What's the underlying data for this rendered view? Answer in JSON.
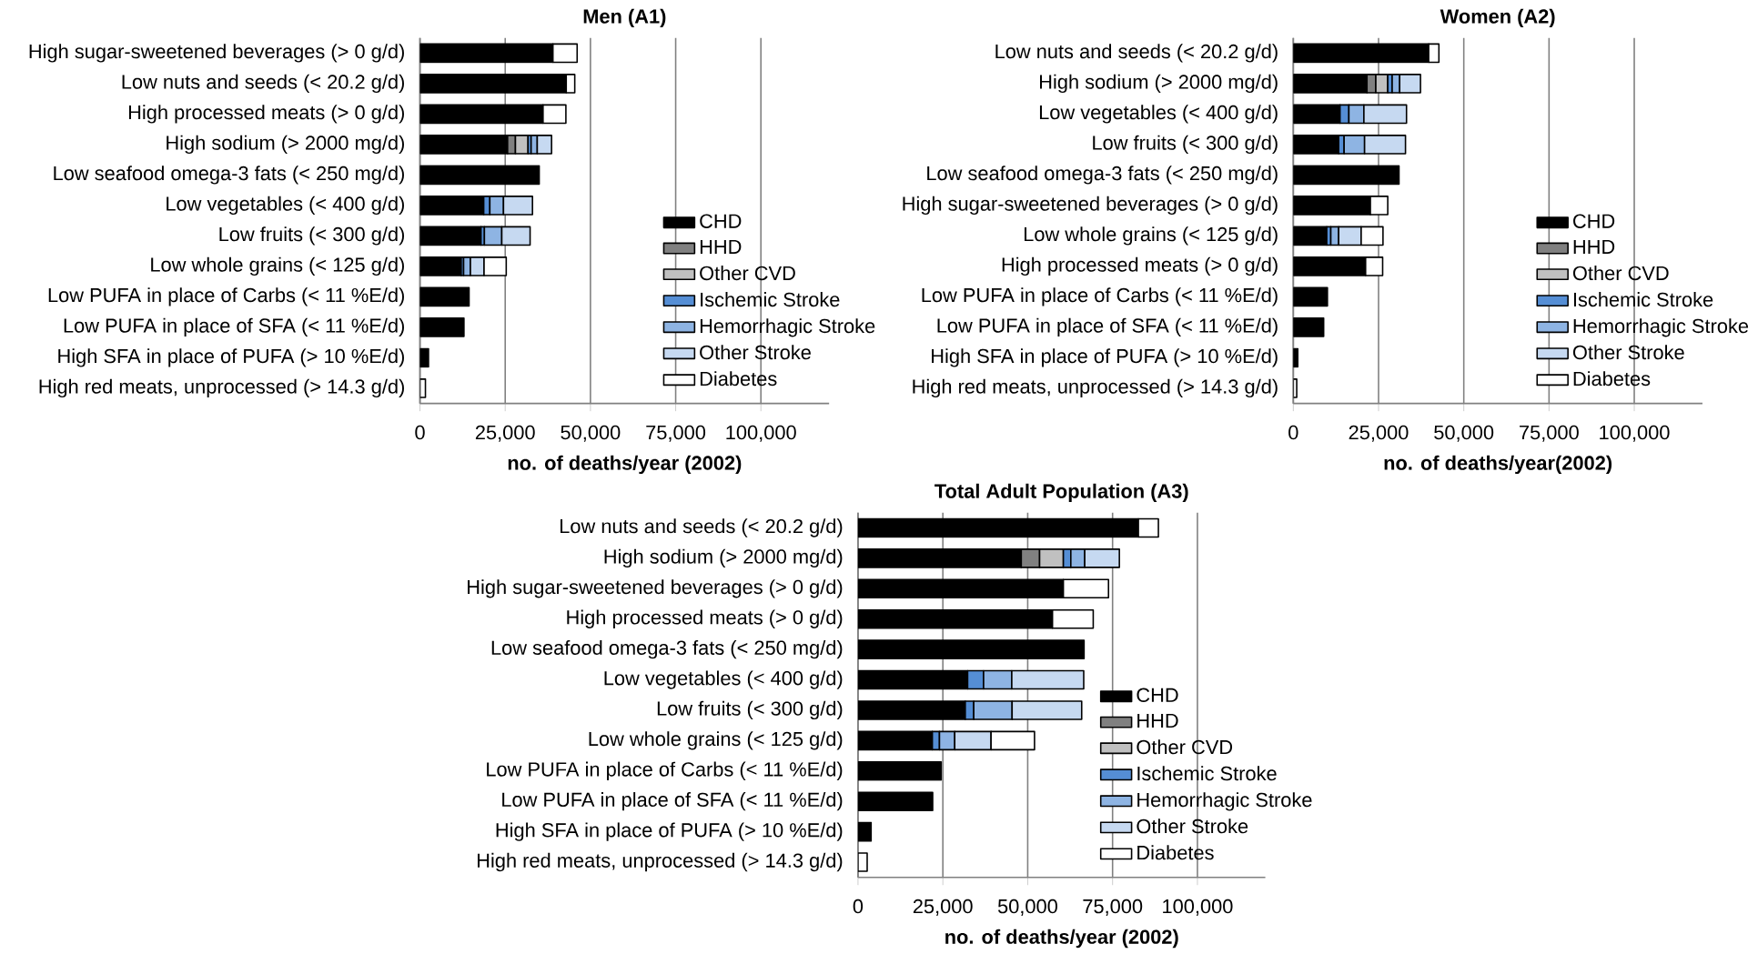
{
  "chart_data": [
    {
      "type": "bar",
      "orientation": "horizontal",
      "stacked": true,
      "title": "Men (A1)",
      "xlabel": "no. of deaths/year (2002)",
      "categories": [
        "High sugar-sweetened beverages (> 0 g/d)",
        "Low nuts and seeds (< 20.2 g/d)",
        "High processed meats (> 0 g/d)",
        "High sodium (> 2000 mg/d)",
        "Low seafood omega-3 fats (< 250 mg/d)",
        "Low vegetables (< 400 g/d)",
        "Low fruits (< 300 g/d)",
        "Low whole grains (< 125 g/d)",
        "Low PUFA in place of Carbs (< 11 %E/d)",
        "Low PUFA in place of SFA (< 11 %E/d)",
        "High SFA in place of PUFA (> 10 %E/d)",
        "High red meats, unprocessed (> 14.3 g/d)"
      ],
      "series": [
        {
          "name": "CHD",
          "color": "#000000",
          "values": [
            39000,
            42900,
            36100,
            25700,
            35000,
            18700,
            17900,
            12100,
            14400,
            12900,
            2500,
            0
          ]
        },
        {
          "name": "HHD",
          "color": "#808080",
          "values": [
            0,
            0,
            0,
            2300,
            0,
            0,
            0,
            0,
            0,
            0,
            0,
            0
          ]
        },
        {
          "name": "Other CVD",
          "color": "#c0c0c0",
          "values": [
            0,
            0,
            0,
            3700,
            0,
            0,
            0,
            0,
            0,
            0,
            0,
            0
          ]
        },
        {
          "name": "Ischemic Stroke",
          "color": "#558ed5",
          "values": [
            0,
            0,
            0,
            900,
            0,
            1800,
            1000,
            700,
            0,
            0,
            0,
            0
          ]
        },
        {
          "name": "Hemorrhagic Stroke",
          "color": "#8eb4e3",
          "values": [
            0,
            0,
            0,
            1800,
            0,
            4000,
            5100,
            2000,
            0,
            0,
            0,
            0
          ]
        },
        {
          "name": "Other Stroke",
          "color": "#c6d9f1",
          "values": [
            0,
            0,
            0,
            4200,
            0,
            8500,
            8300,
            4000,
            0,
            0,
            0,
            0
          ]
        },
        {
          "name": "Diabetes",
          "color": "#ffffff",
          "values": [
            7100,
            2500,
            6700,
            0,
            0,
            0,
            0,
            6500,
            0,
            0,
            0,
            1600
          ]
        }
      ],
      "xlim": [
        0,
        120000
      ],
      "xticks": [
        0,
        {
          "value": 25000,
          "label": "25,000"
        },
        {
          "value": 50000,
          "label": "50,000"
        },
        {
          "value": 75000,
          "label": "75,000"
        },
        {
          "value": 100000,
          "label": "100,000"
        }
      ],
      "grid": "x",
      "legend": "bottom right"
    },
    {
      "type": "bar",
      "orientation": "horizontal",
      "stacked": true,
      "title": "Women (A2)",
      "xlabel": "no. of deaths/year(2002)",
      "categories": [
        "Low nuts and seeds (< 20.2 g/d)",
        "High sodium (> 2000 mg/d)",
        "Low vegetables (< 400 g/d)",
        "Low fruits (< 300 g/d)",
        "Low seafood omega-3 fats (< 250 mg/d)",
        "High sugar-sweetened beverages (> 0 g/d)",
        "Low whole grains (< 125 g/d)",
        "High processed meats (> 0 g/d)",
        "Low PUFA in place of Carbs (< 11 %E/d)",
        "Low PUFA in place of SFA (< 11 %E/d)",
        "High SFA in place of PUFA (> 10 %E/d)",
        "High red meats, unprocessed (> 14.3 g/d)"
      ],
      "series": [
        {
          "name": "CHD",
          "color": "#000000",
          "values": [
            39700,
            21600,
            13700,
            13300,
            31000,
            22600,
            9800,
            21200,
            10000,
            8900,
            1300,
            0
          ]
        },
        {
          "name": "HHD",
          "color": "#808080",
          "values": [
            0,
            2600,
            0,
            0,
            0,
            0,
            0,
            0,
            0,
            0,
            0,
            0
          ]
        },
        {
          "name": "Other CVD",
          "color": "#c0c0c0",
          "values": [
            0,
            3500,
            0,
            0,
            0,
            0,
            0,
            0,
            0,
            0,
            0,
            0
          ]
        },
        {
          "name": "Ischemic Stroke",
          "color": "#558ed5",
          "values": [
            0,
            1300,
            2600,
            1600,
            0,
            0,
            1200,
            0,
            0,
            0,
            0,
            0
          ]
        },
        {
          "name": "Hemorrhagic Stroke",
          "color": "#8eb4e3",
          "values": [
            0,
            2200,
            4400,
            6000,
            0,
            0,
            2300,
            0,
            0,
            0,
            0,
            0
          ]
        },
        {
          "name": "Other Stroke",
          "color": "#c6d9f1",
          "values": [
            0,
            6100,
            12500,
            12000,
            0,
            0,
            6600,
            0,
            0,
            0,
            0,
            0
          ]
        },
        {
          "name": "Diabetes",
          "color": "#ffffff",
          "values": [
            3000,
            0,
            0,
            0,
            0,
            5100,
            6400,
            5000,
            0,
            0,
            0,
            1000
          ]
        }
      ],
      "xlim": [
        0,
        120000
      ],
      "xticks": [
        0,
        {
          "value": 25000,
          "label": "25,000"
        },
        {
          "value": 50000,
          "label": "50,000"
        },
        {
          "value": 75000,
          "label": "75,000"
        },
        {
          "value": 100000,
          "label": "100,000"
        }
      ],
      "grid": "x",
      "legend": "bottom right"
    },
    {
      "type": "bar",
      "orientation": "horizontal",
      "stacked": true,
      "title": "Total Adult Population (A3)",
      "xlabel": "no. of deaths/year (2002)",
      "categories": [
        "Low nuts and seeds (< 20.2 g/d)",
        "High sodium (> 2000 mg/d)",
        "High sugar-sweetened beverages (> 0 g/d)",
        "High processed meats (> 0 g/d)",
        "Low seafood omega-3 fats (< 250 mg/d)",
        "Low vegetables (< 400 g/d)",
        "Low fruits (< 300 g/d)",
        "Low whole grains (< 125 g/d)",
        "Low PUFA in place of Carbs (< 11 %E/d)",
        "Low PUFA in place of SFA (< 11 %E/d)",
        "High SFA in place of PUFA (> 10 %E/d)",
        "High red meats, unprocessed (> 14.3 g/d)"
      ],
      "series": [
        {
          "name": "CHD",
          "color": "#000000",
          "values": [
            82600,
            48100,
            60500,
            57300,
            66600,
            32300,
            31600,
            21900,
            24500,
            22000,
            3900,
            0
          ]
        },
        {
          "name": "HHD",
          "color": "#808080",
          "values": [
            0,
            5400,
            0,
            0,
            0,
            0,
            0,
            0,
            0,
            0,
            0,
            0
          ]
        },
        {
          "name": "Other CVD",
          "color": "#c0c0c0",
          "values": [
            0,
            7000,
            0,
            0,
            0,
            0,
            0,
            0,
            0,
            0,
            0,
            0
          ]
        },
        {
          "name": "Ischemic Stroke",
          "color": "#558ed5",
          "values": [
            0,
            2200,
            0,
            0,
            0,
            4700,
            2500,
            2100,
            0,
            0,
            0,
            0
          ]
        },
        {
          "name": "Hemorrhagic Stroke",
          "color": "#8eb4e3",
          "values": [
            0,
            4100,
            0,
            0,
            0,
            8300,
            11300,
            4500,
            0,
            0,
            0,
            0
          ]
        },
        {
          "name": "Other Stroke",
          "color": "#c6d9f1",
          "values": [
            0,
            10200,
            0,
            0,
            0,
            21200,
            20500,
            10700,
            0,
            0,
            0,
            0
          ]
        },
        {
          "name": "Diabetes",
          "color": "#ffffff",
          "values": [
            5900,
            0,
            13300,
            12000,
            0,
            0,
            0,
            12800,
            0,
            0,
            0,
            2700
          ]
        }
      ],
      "xlim": [
        0,
        120000
      ],
      "xticks": [
        0,
        {
          "value": 25000,
          "label": "25,000"
        },
        {
          "value": 50000,
          "label": "50,000"
        },
        {
          "value": 75000,
          "label": "75,000"
        },
        {
          "value": 100000,
          "label": "100,000"
        }
      ],
      "grid": "x",
      "legend": "bottom right"
    }
  ]
}
